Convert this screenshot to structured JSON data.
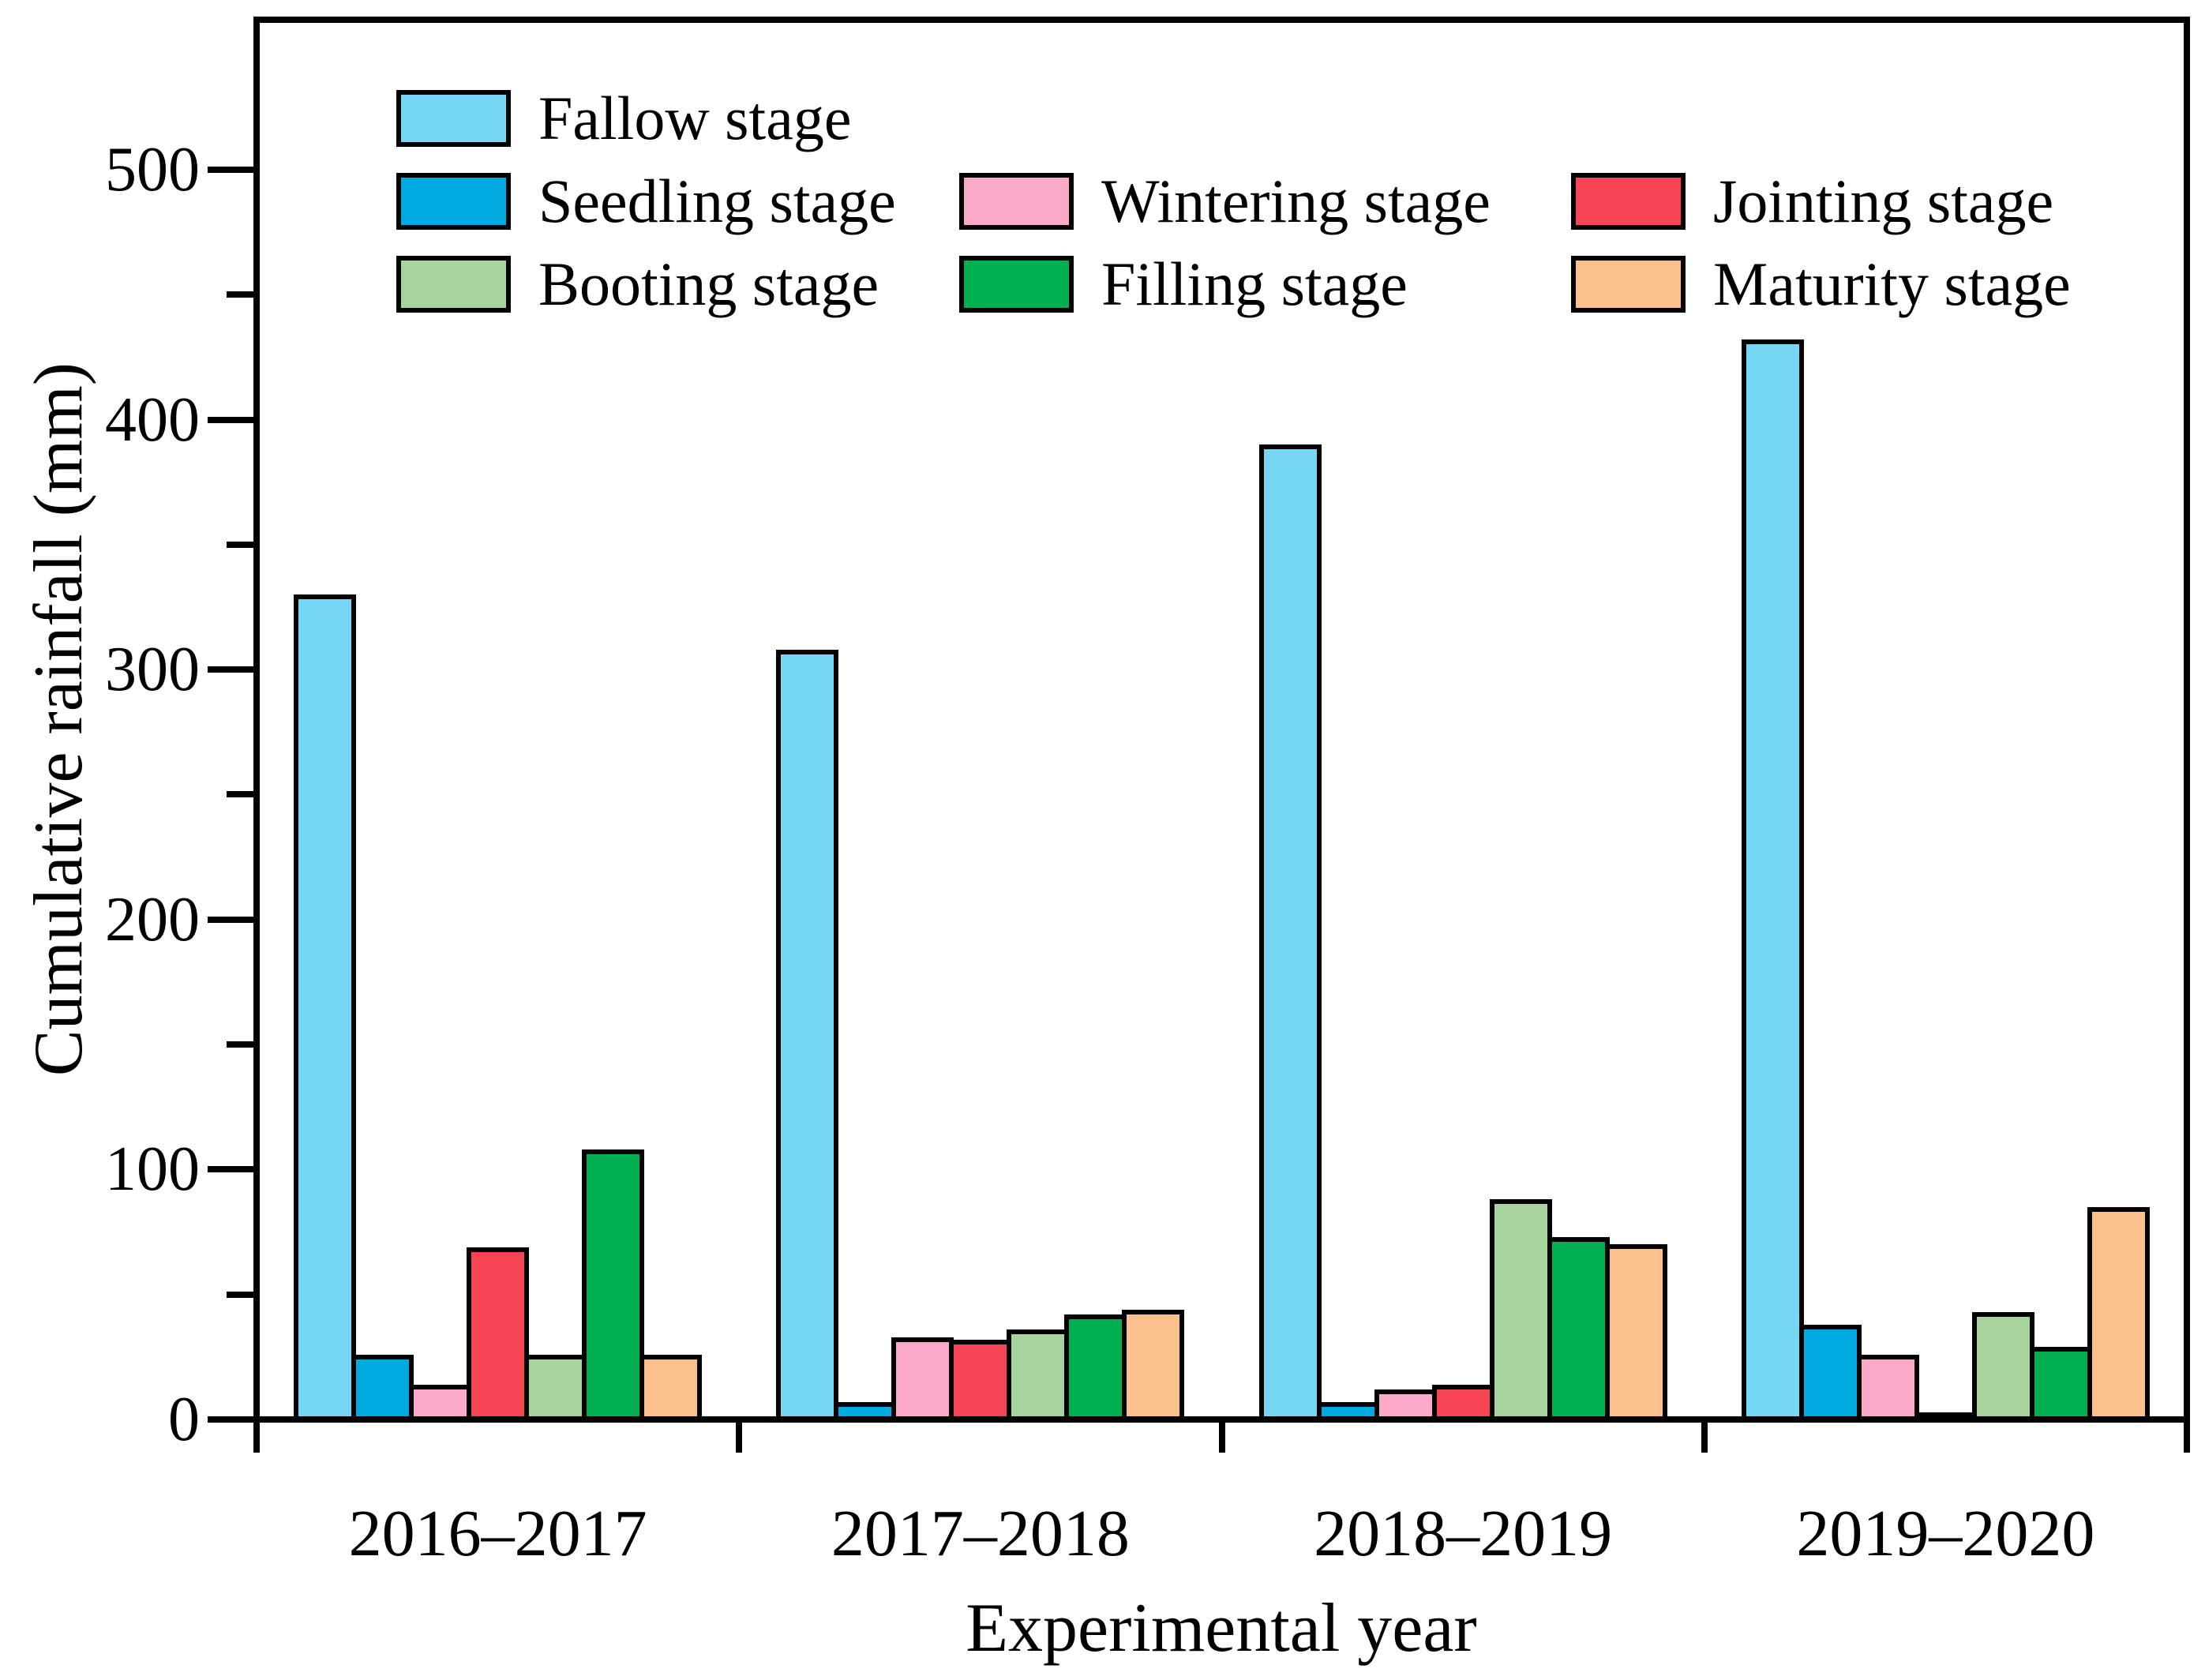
{
  "chart_data": {
    "type": "bar",
    "title": "",
    "xlabel": "Experimental year",
    "ylabel": "Cumulative rainfall (mm)",
    "categories": [
      "2016–2017",
      "2017–2018",
      "2018–2019",
      "2019–2020"
    ],
    "series": [
      {
        "name": "Fallow stage",
        "color": "#75D7F3",
        "values": [
          330,
          308,
          390,
          432
        ]
      },
      {
        "name": "Seedling stage",
        "color": "#00A9E0",
        "values": [
          26,
          7,
          7,
          38
        ]
      },
      {
        "name": "Wintering stage",
        "color": "#FAA9C8",
        "values": [
          14,
          33,
          12,
          26
        ]
      },
      {
        "name": "Jointing stage",
        "color": "#F74455",
        "values": [
          69,
          32,
          14,
          3
        ]
      },
      {
        "name": "Booting stage",
        "color": "#A7D49C",
        "values": [
          26,
          36,
          88,
          43
        ]
      },
      {
        "name": "Filling stage",
        "color": "#00B050",
        "values": [
          108,
          42,
          73,
          29
        ]
      },
      {
        "name": "Maturity stage",
        "color": "#FBC08D",
        "values": [
          26,
          44,
          70,
          85
        ]
      }
    ],
    "ylim": [
      0,
      560
    ],
    "yticks_major": [
      0,
      100,
      200,
      300,
      400,
      500
    ],
    "yticks_minor": [
      50,
      150,
      250,
      350,
      450
    ],
    "grid": "off",
    "legend_position": "upper-left-inside",
    "legend_rows": [
      [
        0
      ],
      [
        1,
        2,
        3
      ],
      [
        4,
        5,
        6
      ]
    ],
    "axis_color": "#000000",
    "background_color": "#FFFFFF"
  }
}
